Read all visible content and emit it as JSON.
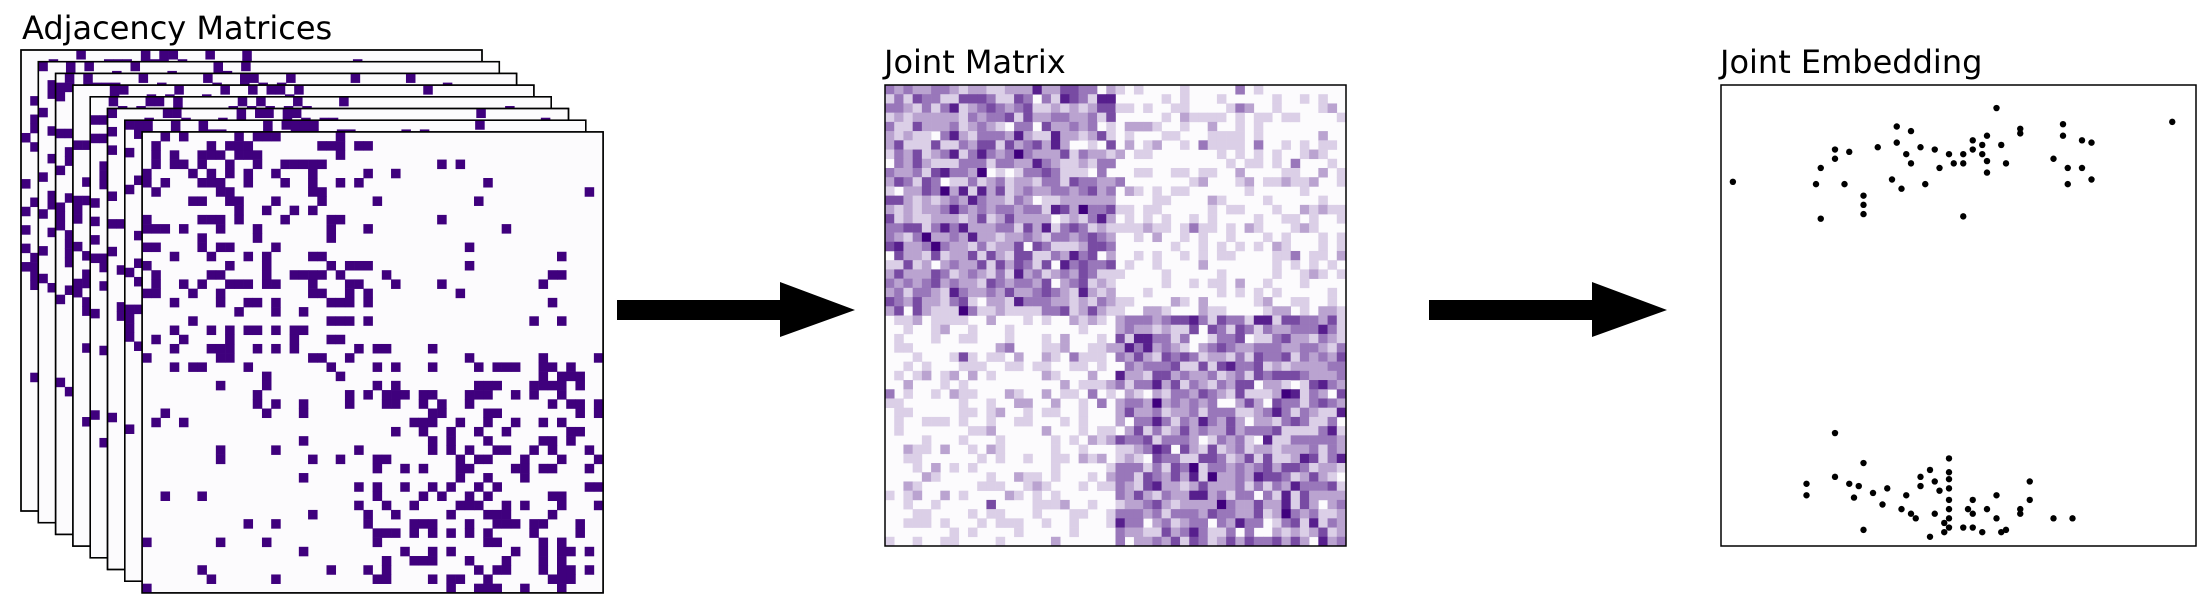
{
  "panels": {
    "adjacency": {
      "title": "Adjacency Matrices"
    },
    "joint_matrix": {
      "title": "Joint Matrix"
    },
    "joint_embedding": {
      "title": "Joint Embedding"
    }
  },
  "colors": {
    "matrix_dark": "#3f007d",
    "matrix_bg": "#fcfbfd",
    "arrow": "#000000",
    "point": "#000000"
  },
  "matrix": {
    "size": 50,
    "block_split": 25,
    "within_block_probability": 0.3,
    "between_block_probability": 0.05,
    "stack_count": 8
  },
  "chart_data": {
    "type": "scatter",
    "xlim": [
      -1,
      1
    ],
    "ylim": [
      -1,
      1
    ],
    "grid": false,
    "points": [
      {
        "x": -0.95,
        "y": 0.58
      },
      {
        "x": -0.6,
        "y": 0.57
      },
      {
        "x": -0.58,
        "y": 0.64
      },
      {
        "x": -0.52,
        "y": 0.72
      },
      {
        "x": -0.52,
        "y": 0.68
      },
      {
        "x": -0.48,
        "y": 0.57
      },
      {
        "x": -0.46,
        "y": 0.71
      },
      {
        "x": -0.4,
        "y": 0.52
      },
      {
        "x": -0.4,
        "y": 0.48
      },
      {
        "x": -0.4,
        "y": 0.44
      },
      {
        "x": -0.58,
        "y": 0.42
      },
      {
        "x": -0.34,
        "y": 0.73
      },
      {
        "x": -0.28,
        "y": 0.59
      },
      {
        "x": -0.26,
        "y": 0.82
      },
      {
        "x": -0.26,
        "y": 0.75
      },
      {
        "x": -0.24,
        "y": 0.55
      },
      {
        "x": -0.2,
        "y": 0.8
      },
      {
        "x": -0.22,
        "y": 0.7
      },
      {
        "x": -0.2,
        "y": 0.66
      },
      {
        "x": -0.16,
        "y": 0.73
      },
      {
        "x": -0.14,
        "y": 0.57
      },
      {
        "x": -0.1,
        "y": 0.72
      },
      {
        "x": -0.08,
        "y": 0.64
      },
      {
        "x": -0.04,
        "y": 0.7
      },
      {
        "x": -0.02,
        "y": 0.66
      },
      {
        "x": 0.02,
        "y": 0.66
      },
      {
        "x": 0.02,
        "y": 0.7
      },
      {
        "x": 0.06,
        "y": 0.72
      },
      {
        "x": 0.06,
        "y": 0.76
      },
      {
        "x": 0.1,
        "y": 0.74
      },
      {
        "x": 0.1,
        "y": 0.7
      },
      {
        "x": 0.12,
        "y": 0.67
      },
      {
        "x": 0.12,
        "y": 0.78
      },
      {
        "x": 0.12,
        "y": 0.62
      },
      {
        "x": 0.18,
        "y": 0.74
      },
      {
        "x": 0.2,
        "y": 0.66
      },
      {
        "x": 0.16,
        "y": 0.9
      },
      {
        "x": 0.26,
        "y": 0.79
      },
      {
        "x": 0.26,
        "y": 0.81
      },
      {
        "x": 0.02,
        "y": 0.43
      },
      {
        "x": 0.4,
        "y": 0.68
      },
      {
        "x": 0.44,
        "y": 0.83
      },
      {
        "x": 0.44,
        "y": 0.78
      },
      {
        "x": 0.46,
        "y": 0.64
      },
      {
        "x": 0.46,
        "y": 0.57
      },
      {
        "x": 0.52,
        "y": 0.64
      },
      {
        "x": 0.52,
        "y": 0.76
      },
      {
        "x": 0.56,
        "y": 0.59
      },
      {
        "x": 0.56,
        "y": 0.75
      },
      {
        "x": 0.9,
        "y": 0.84
      },
      {
        "x": -0.64,
        "y": -0.73
      },
      {
        "x": -0.64,
        "y": -0.78
      },
      {
        "x": -0.52,
        "y": -0.7
      },
      {
        "x": -0.52,
        "y": -0.51
      },
      {
        "x": -0.46,
        "y": -0.73
      },
      {
        "x": -0.42,
        "y": -0.74
      },
      {
        "x": -0.4,
        "y": -0.64
      },
      {
        "x": -0.36,
        "y": -0.77
      },
      {
        "x": -0.32,
        "y": -0.82
      },
      {
        "x": -0.3,
        "y": -0.75
      },
      {
        "x": -0.4,
        "y": -0.93
      },
      {
        "x": -0.24,
        "y": -0.84
      },
      {
        "x": -0.22,
        "y": -0.78
      },
      {
        "x": -0.2,
        "y": -0.86
      },
      {
        "x": -0.18,
        "y": -0.88
      },
      {
        "x": -0.16,
        "y": -0.74
      },
      {
        "x": -0.16,
        "y": -0.7
      },
      {
        "x": -0.12,
        "y": -0.67
      },
      {
        "x": -0.1,
        "y": -0.72
      },
      {
        "x": -0.1,
        "y": -0.86
      },
      {
        "x": -0.08,
        "y": -0.76
      },
      {
        "x": -0.06,
        "y": -0.9
      },
      {
        "x": -0.04,
        "y": -0.8
      },
      {
        "x": -0.04,
        "y": -0.84
      },
      {
        "x": -0.04,
        "y": -0.92
      },
      {
        "x": -0.04,
        "y": -0.62
      },
      {
        "x": -0.04,
        "y": -0.71
      },
      {
        "x": -0.04,
        "y": -0.75
      },
      {
        "x": -0.04,
        "y": -0.68
      },
      {
        "x": -0.06,
        "y": -0.94
      },
      {
        "x": -0.12,
        "y": -0.96
      },
      {
        "x": -0.04,
        "y": -0.88
      },
      {
        "x": 0.02,
        "y": -0.92
      },
      {
        "x": 0.04,
        "y": -0.84
      },
      {
        "x": 0.06,
        "y": -0.8
      },
      {
        "x": 0.06,
        "y": -0.86
      },
      {
        "x": 0.06,
        "y": -0.92
      },
      {
        "x": 0.1,
        "y": -0.94
      },
      {
        "x": 0.12,
        "y": -0.84
      },
      {
        "x": 0.16,
        "y": -0.78
      },
      {
        "x": 0.16,
        "y": -0.88
      },
      {
        "x": 0.18,
        "y": -0.94
      },
      {
        "x": 0.2,
        "y": -0.93
      },
      {
        "x": 0.26,
        "y": -0.86
      },
      {
        "x": 0.26,
        "y": -0.84
      },
      {
        "x": 0.3,
        "y": -0.8
      },
      {
        "x": 0.3,
        "y": -0.72
      },
      {
        "x": 0.4,
        "y": -0.88
      },
      {
        "x": 0.48,
        "y": -0.88
      },
      {
        "x": -0.44,
        "y": -0.79
      }
    ]
  }
}
